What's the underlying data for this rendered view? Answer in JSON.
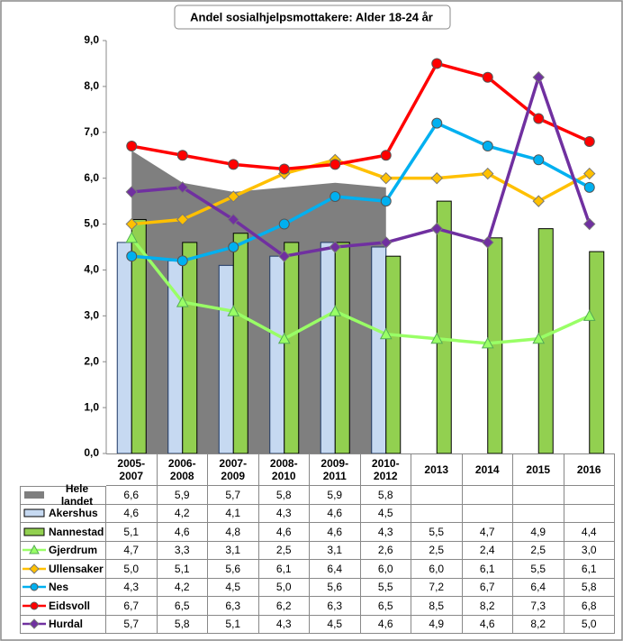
{
  "chart_data": {
    "type": "combo",
    "title": "Andel sosialhjelpsmottakere: Alder 18-24 år",
    "categories": [
      "2005-2007",
      "2006-2008",
      "2007-2009",
      "2008-2010",
      "2009-2011",
      "2010-2012",
      "2013",
      "2014",
      "2015",
      "2016"
    ],
    "ylim": [
      0,
      9
    ],
    "yticks": [
      {
        "value": 0,
        "label": "0,0"
      },
      {
        "value": 1,
        "label": "1,0"
      },
      {
        "value": 2,
        "label": "2,0"
      },
      {
        "value": 3,
        "label": "3,0"
      },
      {
        "value": 4,
        "label": "4,0"
      },
      {
        "value": 5,
        "label": "5,0"
      },
      {
        "value": 6,
        "label": "6,0"
      },
      {
        "value": 7,
        "label": "7,0"
      },
      {
        "value": 8,
        "label": "8,0"
      },
      {
        "value": 9,
        "label": "9,0"
      }
    ],
    "series": [
      {
        "name": "Hele landet",
        "type": "area",
        "color": "#7f7f7f",
        "values": [
          6.6,
          5.9,
          5.7,
          5.8,
          5.9,
          5.8,
          null,
          null,
          null,
          null
        ],
        "value_labels": [
          "6,6",
          "5,9",
          "5,7",
          "5,8",
          "5,9",
          "5,8",
          null,
          null,
          null,
          null
        ]
      },
      {
        "name": "Akershus",
        "type": "bar",
        "color": "#c6d9f1",
        "values": [
          4.6,
          4.2,
          4.1,
          4.3,
          4.6,
          4.5,
          null,
          null,
          null,
          null
        ],
        "value_labels": [
          "4,6",
          "4,2",
          "4,1",
          "4,3",
          "4,6",
          "4,5",
          null,
          null,
          null,
          null
        ]
      },
      {
        "name": "Nannestad",
        "type": "bar",
        "color": "#92d050",
        "values": [
          5.1,
          4.6,
          4.8,
          4.6,
          4.6,
          4.3,
          5.5,
          4.7,
          4.9,
          4.4
        ],
        "value_labels": [
          "5,1",
          "4,6",
          "4,8",
          "4,6",
          "4,6",
          "4,3",
          "5,5",
          "4,7",
          "4,9",
          "4,4"
        ]
      },
      {
        "name": "Gjerdrum",
        "type": "line",
        "marker": "triangle",
        "color": "#99ff66",
        "values": [
          4.7,
          3.3,
          3.1,
          2.5,
          3.1,
          2.6,
          2.5,
          2.4,
          2.5,
          3.0
        ],
        "value_labels": [
          "4,7",
          "3,3",
          "3,1",
          "2,5",
          "3,1",
          "2,6",
          "2,5",
          "2,4",
          "2,5",
          "3,0"
        ]
      },
      {
        "name": "Ullensaker",
        "type": "line",
        "marker": "diamond",
        "color": "#ffc000",
        "values": [
          5.0,
          5.1,
          5.6,
          6.1,
          6.4,
          6.0,
          6.0,
          6.1,
          5.5,
          6.1
        ],
        "value_labels": [
          "5,0",
          "5,1",
          "5,6",
          "6,1",
          "6,4",
          "6,0",
          "6,0",
          "6,1",
          "5,5",
          "6,1"
        ]
      },
      {
        "name": "Nes",
        "type": "line",
        "marker": "circle",
        "color": "#00b0f0",
        "values": [
          4.3,
          4.2,
          4.5,
          5.0,
          5.6,
          5.5,
          7.2,
          6.7,
          6.4,
          5.8
        ],
        "value_labels": [
          "4,3",
          "4,2",
          "4,5",
          "5,0",
          "5,6",
          "5,5",
          "7,2",
          "6,7",
          "6,4",
          "5,8"
        ]
      },
      {
        "name": "Eidsvoll",
        "type": "line",
        "marker": "circle",
        "color": "#ff0000",
        "values": [
          6.7,
          6.5,
          6.3,
          6.2,
          6.3,
          6.5,
          8.5,
          8.2,
          7.3,
          6.8
        ],
        "value_labels": [
          "6,7",
          "6,5",
          "6,3",
          "6,2",
          "6,3",
          "6,5",
          "8,5",
          "8,2",
          "7,3",
          "6,8"
        ]
      },
      {
        "name": "Hurdal",
        "type": "line",
        "marker": "diamond",
        "color": "#7030a0",
        "values": [
          5.7,
          5.8,
          5.1,
          4.3,
          4.5,
          4.6,
          4.9,
          4.6,
          8.2,
          5.0
        ],
        "value_labels": [
          "5,7",
          "5,8",
          "5,1",
          "4,3",
          "4,5",
          "4,6",
          "4,9",
          "4,6",
          "8,2",
          "5,0"
        ]
      }
    ]
  }
}
